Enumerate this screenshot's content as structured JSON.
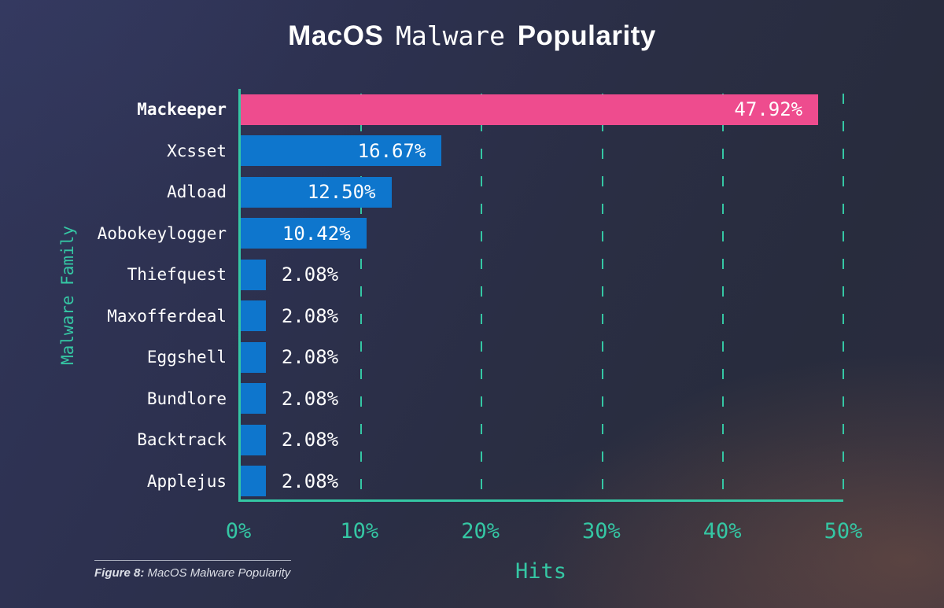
{
  "title": {
    "part1": "MacOS",
    "part2": "Malware",
    "part3": "Popularity"
  },
  "caption": {
    "prefix": "Figure 8:",
    "text": " MacOS Malware Popularity"
  },
  "chart_data": {
    "type": "bar",
    "orientation": "horizontal",
    "title": "MacOS Malware Popularity",
    "xlabel": "Hits",
    "ylabel": "Malware Family",
    "xlim": [
      0,
      50
    ],
    "grid": "dashed vertical gridlines at each 10%",
    "legend": "none",
    "categories": [
      "Mackeeper",
      "Xcsset",
      "Adload",
      "Aobokeylogger",
      "Thiefquest",
      "Maxofferdeal",
      "Eggshell",
      "Bundlore",
      "Backtrack",
      "Applejus"
    ],
    "values": [
      47.92,
      16.67,
      12.5,
      10.42,
      2.08,
      2.08,
      2.08,
      2.08,
      2.08,
      2.08
    ],
    "value_labels": [
      "47.92%",
      "16.67%",
      "12.50%",
      "10.42%",
      "2.08%",
      "2.08%",
      "2.08%",
      "2.08%",
      "2.08%",
      "2.08%"
    ],
    "label_positions": [
      "inside",
      "inside",
      "inside",
      "inside",
      "outside",
      "outside",
      "outside",
      "outside",
      "outside",
      "outside"
    ],
    "highlight_category": "Mackeeper",
    "xticks": {
      "values": [
        0,
        10,
        20,
        30,
        40,
        50
      ],
      "labels": [
        "0%",
        "10%",
        "20%",
        "30%",
        "40%",
        "50%"
      ]
    },
    "gridline_values": [
      10,
      20,
      30,
      40,
      50
    ],
    "colors": {
      "highlight_bar": "#ee4c8e",
      "bar": "#0e76cd",
      "axis": "#35c7a4",
      "tick_text": "#35c7a4",
      "value_text": "#ffffff",
      "category_text": "#ffffff",
      "background_top_left": "#31365a",
      "background_bottom_right": "#53414a"
    }
  }
}
